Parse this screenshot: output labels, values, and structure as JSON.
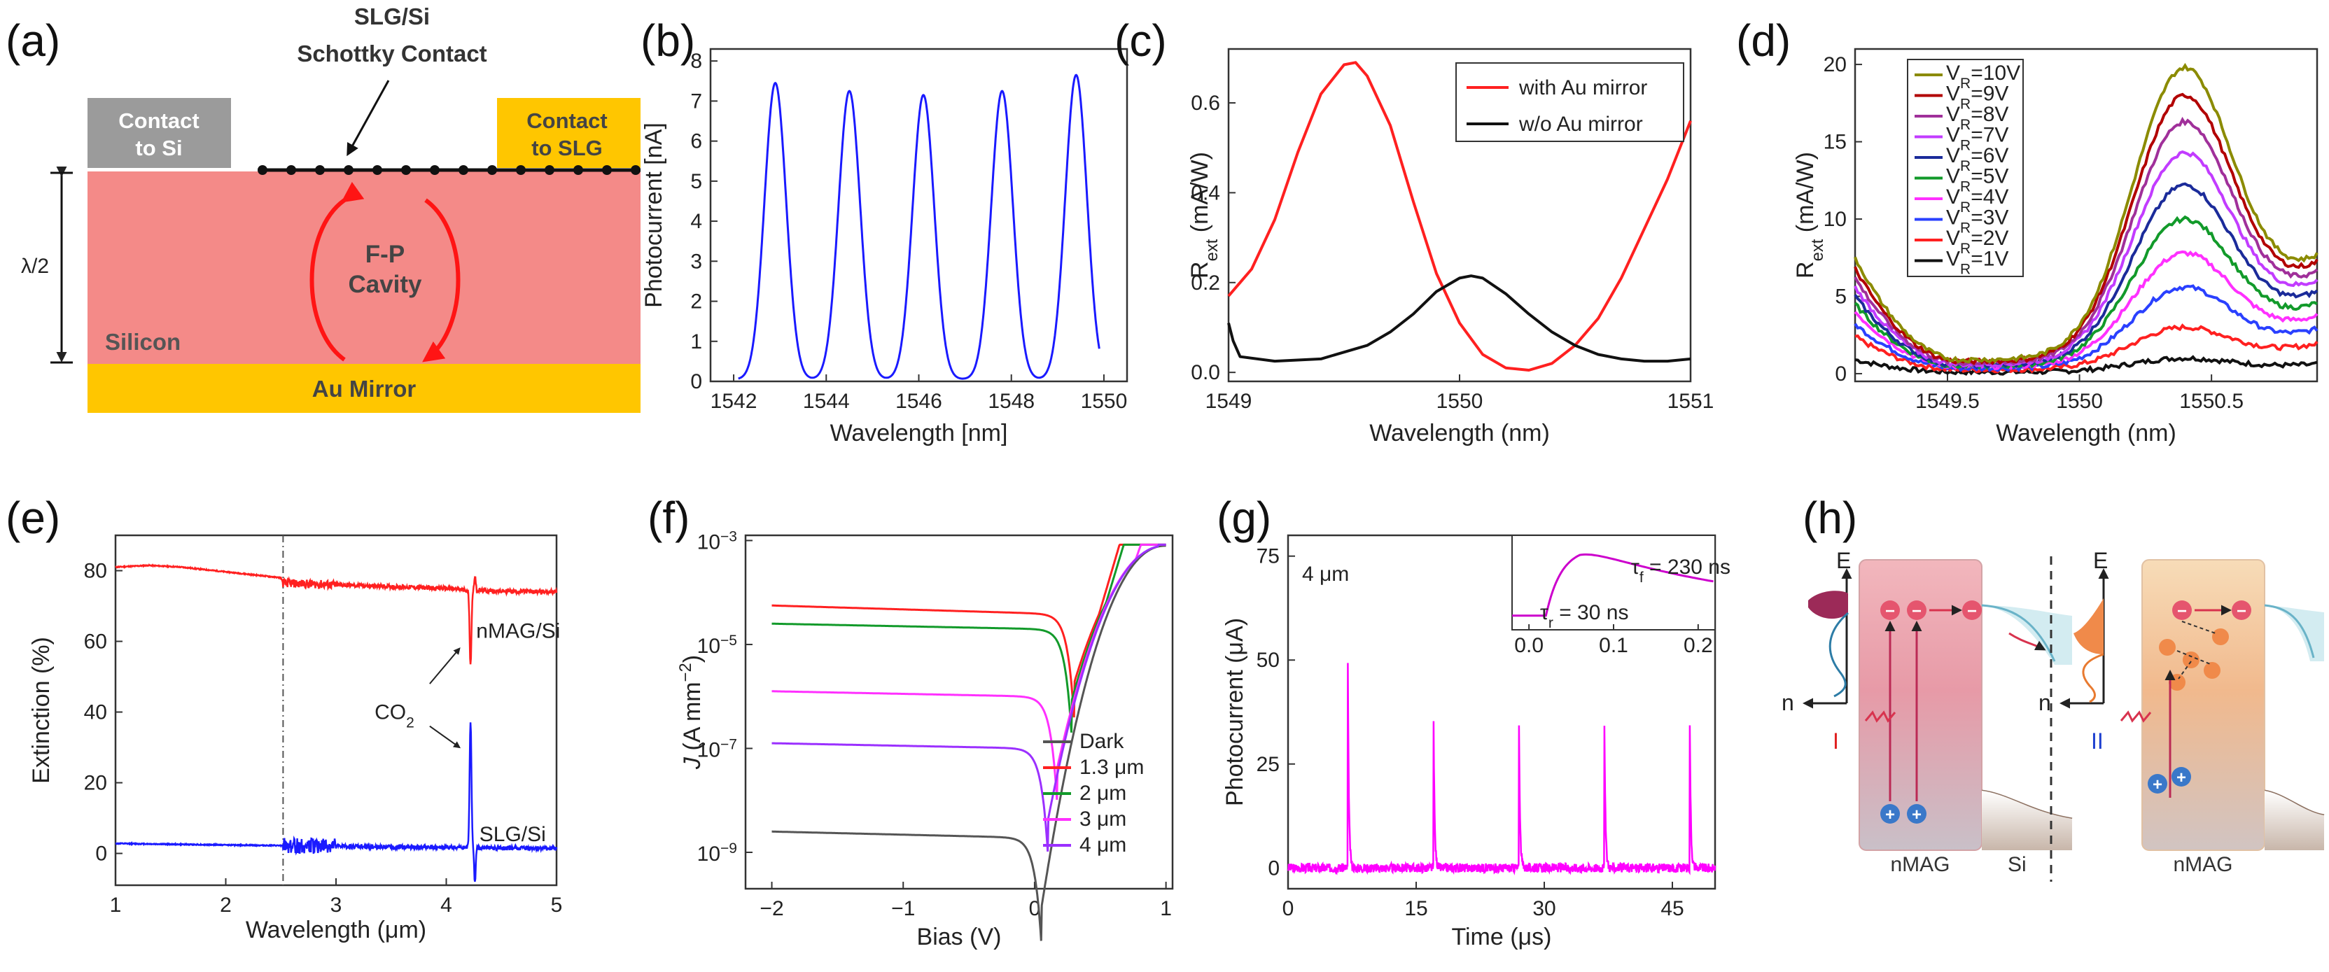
{
  "panel_labels": [
    "(a)",
    "(b)",
    "(c)",
    "(d)",
    "(e)",
    "(f)",
    "(g)",
    "(h)"
  ],
  "colors": {
    "silicon": "#f48a88",
    "gold": "#ffc600",
    "contact_si": "#9b9b9b",
    "cavity_arrow": "#ff1414",
    "blue_trace": "#1a1aff",
    "red_trace": "#ff2020",
    "magenta_trace": "#ff00ff"
  },
  "panel_a": {
    "schottky_label_1": "SLG/Si",
    "schottky_label_2": "Schottky Contact",
    "contact_si_1": "Contact",
    "contact_si_2": "to Si",
    "contact_slg_1": "Contact",
    "contact_slg_2": "to SLG",
    "cavity_1": "F-P",
    "cavity_2": "Cavity",
    "silicon_label": "Silicon",
    "mirror_label": "Au Mirror",
    "thickness_label": "λ/2"
  },
  "panel_h": {
    "axis_e": "E",
    "axis_n": "n",
    "roman_1": "I",
    "roman_2": "II",
    "nmag_1": "nMAG",
    "nmag_2": "nMAG",
    "si_label": "Si"
  },
  "chart_data": [
    {
      "id": "b",
      "type": "line",
      "title": "",
      "xlabel": "Wavelength [nm]",
      "ylabel": "Photocurrent [nA]",
      "xlim": [
        1541.5,
        1550.5
      ],
      "ylim": [
        0,
        8.3
      ],
      "xticks": [
        1542,
        1544,
        1546,
        1548,
        1550
      ],
      "yticks": [
        0,
        1,
        2,
        3,
        4,
        5,
        6,
        7,
        8
      ],
      "series": [
        {
          "name": "photocurrent",
          "color": "#1a1aff",
          "peaks": [
            1542.9,
            1544.5,
            1546.1,
            1547.8,
            1549.4
          ],
          "peak_values": [
            7.4,
            7.2,
            7.1,
            7.2,
            7.6
          ],
          "baseline": 0.05
        }
      ]
    },
    {
      "id": "c",
      "type": "line",
      "title": "",
      "xlabel": "Wavelength (nm)",
      "ylabel": "R",
      "ylabel_sub": "ext",
      "ylabel_tail": " (mA/W)",
      "xlim": [
        1549,
        1551
      ],
      "ylim": [
        -0.02,
        0.72
      ],
      "xticks": [
        1549,
        1550,
        1551
      ],
      "yticks": [
        0.0,
        0.2,
        0.4,
        0.6
      ],
      "series": [
        {
          "name": "with Au mirror",
          "color": "#ff2020",
          "x": [
            1549.0,
            1549.1,
            1549.2,
            1549.3,
            1549.4,
            1549.5,
            1549.55,
            1549.6,
            1549.7,
            1549.8,
            1549.9,
            1550.0,
            1550.1,
            1550.2,
            1550.3,
            1550.4,
            1550.5,
            1550.6,
            1550.7,
            1550.8,
            1550.9,
            1551.0
          ],
          "y": [
            0.17,
            0.23,
            0.34,
            0.49,
            0.62,
            0.685,
            0.69,
            0.66,
            0.55,
            0.38,
            0.22,
            0.11,
            0.04,
            0.01,
            0.005,
            0.02,
            0.06,
            0.12,
            0.21,
            0.32,
            0.43,
            0.56
          ]
        },
        {
          "name": "w/o Au mirror",
          "color": "#111111",
          "x": [
            1549.0,
            1549.02,
            1549.05,
            1549.2,
            1549.4,
            1549.6,
            1549.7,
            1549.8,
            1549.9,
            1550.0,
            1550.05,
            1550.1,
            1550.2,
            1550.3,
            1550.4,
            1550.5,
            1550.6,
            1550.7,
            1550.8,
            1550.9,
            1551.0
          ],
          "y": [
            0.11,
            0.07,
            0.035,
            0.025,
            0.03,
            0.06,
            0.09,
            0.13,
            0.18,
            0.21,
            0.215,
            0.21,
            0.175,
            0.13,
            0.09,
            0.06,
            0.04,
            0.03,
            0.025,
            0.025,
            0.03
          ]
        }
      ]
    },
    {
      "id": "d",
      "type": "line",
      "title": "",
      "xlabel": "Wavelength (nm)",
      "ylabel": "R",
      "ylabel_sub": "ext",
      "ylabel_tail": " (mA/W)",
      "xlim": [
        1549.15,
        1550.9
      ],
      "ylim": [
        -0.5,
        21
      ],
      "xticks": [
        1549.5,
        1550,
        1550.5
      ],
      "xtick_labels": [
        "1549.5",
        "1550",
        "1550.5"
      ],
      "yticks": [
        0,
        5,
        10,
        15,
        20
      ],
      "min_x": 1549.55,
      "peak_x": 1550.4,
      "series": [
        {
          "name": "V",
          "sub": "R",
          "tail": "=10V",
          "color": "#8b8b00",
          "start": 7.5,
          "min": 0.9,
          "peak": 19.8,
          "end": 7.3
        },
        {
          "name": "V",
          "sub": "R",
          "tail": "=9V",
          "color": "#b20000",
          "start": 6.8,
          "min": 0.8,
          "peak": 18.0,
          "end": 6.9
        },
        {
          "name": "V",
          "sub": "R",
          "tail": "=8V",
          "color": "#a0309a",
          "start": 6.2,
          "min": 0.7,
          "peak": 16.3,
          "end": 6.3
        },
        {
          "name": "V",
          "sub": "R",
          "tail": "=7V",
          "color": "#c23cff",
          "start": 5.6,
          "min": 0.6,
          "peak": 14.3,
          "end": 5.8
        },
        {
          "name": "V",
          "sub": "R",
          "tail": "=6V",
          "color": "#1b2b9a",
          "start": 5.0,
          "min": 0.55,
          "peak": 12.2,
          "end": 5.1
        },
        {
          "name": "V",
          "sub": "R",
          "tail": "=5V",
          "color": "#129a2a",
          "start": 4.5,
          "min": 0.5,
          "peak": 10.0,
          "end": 4.4
        },
        {
          "name": "V",
          "sub": "R",
          "tail": "=4V",
          "color": "#ff30ff",
          "start": 4.0,
          "min": 0.45,
          "peak": 7.8,
          "end": 3.6
        },
        {
          "name": "V",
          "sub": "R",
          "tail": "=3V",
          "color": "#2a40ff",
          "start": 3.2,
          "min": 0.35,
          "peak": 5.6,
          "end": 2.8
        },
        {
          "name": "V",
          "sub": "R",
          "tail": "=2V",
          "color": "#ff2020",
          "start": 2.4,
          "min": 0.25,
          "peak": 3.0,
          "end": 1.9
        },
        {
          "name": "V",
          "sub": "R",
          "tail": "=1V",
          "color": "#111111",
          "start": 0.9,
          "min": 0.1,
          "peak": 1.0,
          "end": 0.6
        }
      ]
    },
    {
      "id": "e",
      "type": "line",
      "title": "",
      "xlabel": "Wavelength (μm)",
      "ylabel": "Extinction (%)",
      "xlim": [
        1,
        5
      ],
      "ylim": [
        -9,
        90
      ],
      "xticks": [
        1,
        2,
        3,
        4,
        5
      ],
      "yticks": [
        0,
        20,
        40,
        60,
        80
      ],
      "dashed_x": 2.52,
      "co2_label": "CO",
      "co2_sub": "2",
      "series": [
        {
          "name": "nMAG/Si",
          "color": "#ff2020",
          "x": [
            1.0,
            1.3,
            1.6,
            1.9,
            2.2,
            2.5,
            2.52,
            3.0,
            3.5,
            4.0,
            4.2,
            4.5,
            5.0
          ],
          "y": [
            81,
            81.5,
            81,
            80,
            79,
            78,
            76.5,
            76,
            75.5,
            75,
            74.5,
            74.2,
            74
          ]
        },
        {
          "name": "SLG/Si",
          "color": "#1a1aff",
          "x": [
            1.0,
            1.5,
            2.0,
            2.5,
            3.0,
            3.5,
            4.0,
            4.5,
            5.0
          ],
          "y": [
            2.8,
            2.6,
            2.4,
            2.2,
            2.0,
            1.8,
            1.6,
            1.5,
            1.4
          ]
        }
      ]
    },
    {
      "id": "f",
      "type": "line",
      "title": "",
      "xlabel": "Bias (V)",
      "ylabel": "J",
      "ylabel_tail": " (A mm",
      "ylabel_sup": "−2",
      "ylabel_close": ")",
      "yscale": "log",
      "xlim": [
        -2.2,
        1.05
      ],
      "ylim_exp": [
        -9.7,
        -2.9
      ],
      "xticks": [
        -2,
        -1,
        0,
        1
      ],
      "xtick_labels": [
        "−2",
        "−1",
        "0",
        "1"
      ],
      "yticks_exp": [
        -9,
        -7,
        -5,
        -3
      ],
      "ytick_base": "10",
      "ytick_exps": [
        "−9",
        "−7",
        "−5",
        "−3"
      ],
      "series": [
        {
          "name": "Dark",
          "color": "#555555",
          "plateau_exp": -8.6,
          "dip_x": 0.05,
          "slope_exp": -0.12
        },
        {
          "name": "1.3 μm",
          "color": "#ff2020",
          "plateau_exp": -4.25,
          "dip_x": 0.3,
          "slope_exp": -0.15
        },
        {
          "name": "2 μm",
          "color": "#129a2a",
          "plateau_exp": -4.6,
          "dip_x": 0.28,
          "slope_exp": -0.1
        },
        {
          "name": "3 μm",
          "color": "#ff30ff",
          "plateau_exp": -5.9,
          "dip_x": 0.17,
          "slope_exp": -0.1
        },
        {
          "name": "4 μm",
          "color": "#9b30ff",
          "plateau_exp": -6.9,
          "dip_x": 0.1,
          "slope_exp": -0.1
        }
      ]
    },
    {
      "id": "g",
      "type": "line",
      "title": "",
      "xlabel": "Time (μs)",
      "ylabel": "Photocurrent (μA)",
      "xlim": [
        0,
        50
      ],
      "ylim": [
        -5,
        80
      ],
      "xticks": [
        0,
        15,
        30,
        45
      ],
      "yticks": [
        0,
        25,
        50,
        75
      ],
      "annotation": "4 μm",
      "series": [
        {
          "name": "4 μm",
          "color": "#ff00ff",
          "pulse_times": [
            7,
            17,
            27,
            37,
            47
          ],
          "pulse_peak": 49
        }
      ],
      "inset": {
        "xlim": [
          -0.02,
          0.22
        ],
        "xticks": [
          0.0,
          0.1,
          0.2
        ],
        "xtick_labels": [
          "0.0",
          "0.1",
          "0.2"
        ],
        "tau_r": "τ",
        "tau_r_sub": "r",
        "tau_r_val": " = 30 ns",
        "tau_f": "τ",
        "tau_f_sub": "f",
        "tau_f_val": " = 230 ns",
        "color": "#cc00cc"
      }
    }
  ]
}
